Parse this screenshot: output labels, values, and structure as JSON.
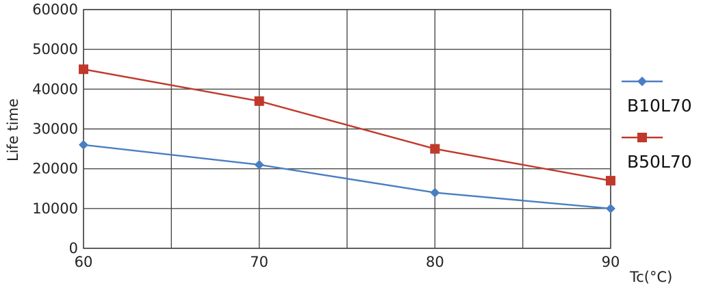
{
  "chart_data": {
    "type": "line",
    "title": "",
    "xlabel": "Tc(°C)",
    "ylabel": "Life time",
    "x": [
      60,
      70,
      80,
      90
    ],
    "xlim": [
      60,
      90
    ],
    "ylim": [
      0,
      60000
    ],
    "xticks": [
      "60",
      "70",
      "80",
      "90"
    ],
    "yticks": [
      "0",
      "10000",
      "20000",
      "30000",
      "40000",
      "50000",
      "60000"
    ],
    "grid": true,
    "legend_position": "right",
    "series": [
      {
        "name": "B10L70",
        "marker": "diamond",
        "color": "#4a7ec2",
        "values": [
          26000,
          21000,
          14000,
          10000
        ]
      },
      {
        "name": "B50L70",
        "marker": "square",
        "color": "#c0392b",
        "values": [
          45000,
          37000,
          25000,
          17000
        ]
      }
    ]
  }
}
